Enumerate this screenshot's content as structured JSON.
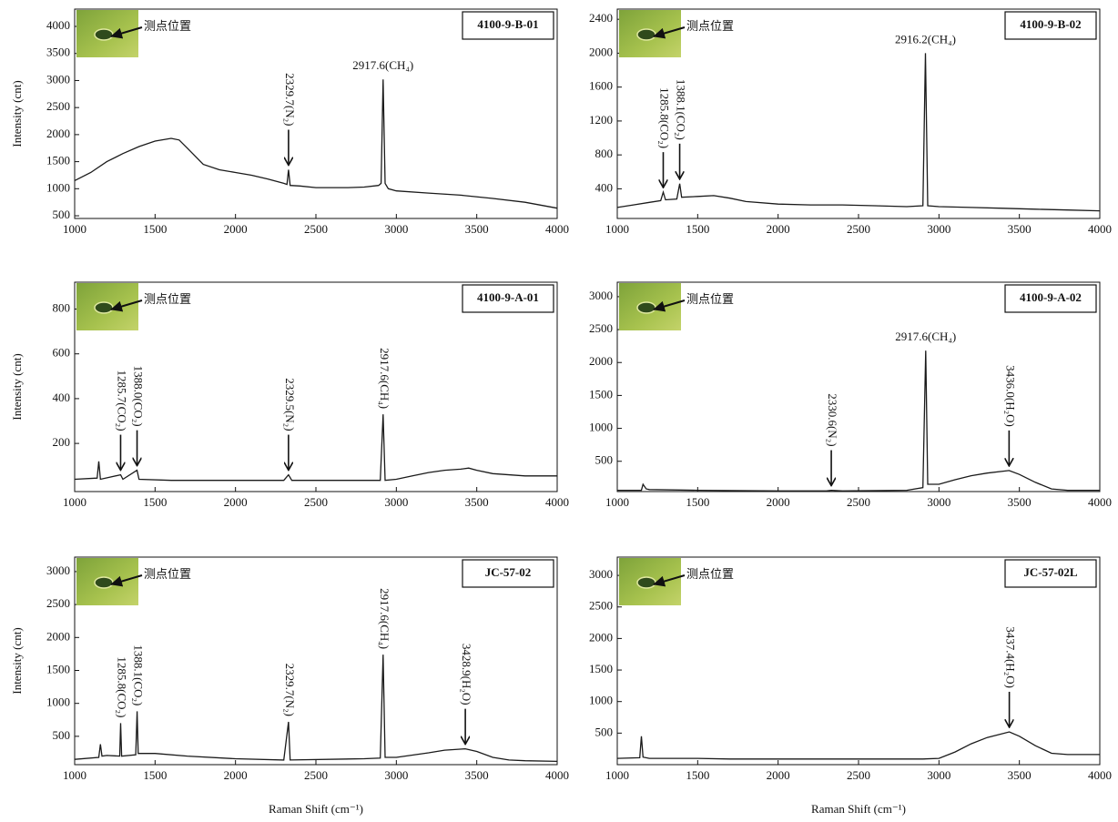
{
  "chart_data": [
    {
      "type": "line",
      "label": "4100-9-B-01",
      "inset_label": "测点位置",
      "ylabel": "Intensity (cnt)",
      "color": "#1a1a1a",
      "xlim": [
        1000,
        4000
      ],
      "ylim": [
        450,
        4320
      ],
      "xticks": [
        1000,
        1500,
        2000,
        2500,
        3000,
        3500,
        4000
      ],
      "yticks": [
        500,
        1000,
        1500,
        2000,
        2500,
        3000,
        3500,
        4000
      ],
      "annotations": [
        {
          "text": "2329.7(N₂)",
          "x": 2329.7,
          "orientation": "vertical",
          "arrow": true
        },
        {
          "text": "2917.6(CH₄)",
          "x": 2917.6,
          "orientation": "horizontal",
          "arrow": false
        }
      ],
      "x": [
        1000,
        1100,
        1200,
        1300,
        1400,
        1500,
        1600,
        1650,
        1700,
        1800,
        1900,
        2000,
        2100,
        2200,
        2300,
        2320,
        2329.7,
        2340,
        2400,
        2500,
        2600,
        2700,
        2800,
        2890,
        2905,
        2917.6,
        2930,
        2950,
        3000,
        3200,
        3400,
        3600,
        3800,
        4000
      ],
      "values": [
        1150,
        1300,
        1500,
        1650,
        1780,
        1880,
        1930,
        1900,
        1750,
        1450,
        1350,
        1300,
        1250,
        1180,
        1100,
        1080,
        1350,
        1060,
        1050,
        1020,
        1020,
        1020,
        1030,
        1060,
        1100,
        3020,
        1100,
        1000,
        960,
        920,
        880,
        820,
        750,
        640
      ]
    },
    {
      "type": "line",
      "label": "4100-9-B-02",
      "inset_label": "测点位置",
      "color": "#1a1a1a",
      "xlim": [
        1000,
        4000
      ],
      "ylim": [
        50,
        2520
      ],
      "xticks": [
        1000,
        1500,
        2000,
        2500,
        3000,
        3500,
        4000
      ],
      "yticks": [
        400,
        800,
        1200,
        1600,
        2000,
        2400
      ],
      "annotations": [
        {
          "text": "1285.8(CO₂)",
          "x": 1285.8,
          "orientation": "vertical",
          "arrow": true
        },
        {
          "text": "1388.1(CO₂)",
          "x": 1388.1,
          "orientation": "vertical",
          "arrow": true
        },
        {
          "text": "2916.2(CH₄)",
          "x": 2916.2,
          "orientation": "horizontal",
          "arrow": false
        }
      ],
      "x": [
        1000,
        1100,
        1200,
        1270,
        1285.8,
        1300,
        1370,
        1388.1,
        1400,
        1500,
        1600,
        1700,
        1800,
        2000,
        2200,
        2400,
        2600,
        2800,
        2900,
        2916.2,
        2930,
        3000,
        3200,
        3400,
        3600,
        3800,
        4000
      ],
      "values": [
        180,
        210,
        240,
        260,
        360,
        270,
        280,
        460,
        300,
        310,
        320,
        290,
        250,
        220,
        210,
        210,
        200,
        190,
        200,
        2000,
        200,
        190,
        180,
        170,
        160,
        150,
        140
      ]
    },
    {
      "type": "line",
      "label": "4100-9-A-01",
      "inset_label": "测点位置",
      "ylabel": "Intensity (cnt)",
      "color": "#1a1a1a",
      "xlim": [
        1000,
        4000
      ],
      "ylim": [
        -15,
        920
      ],
      "xticks": [
        1000,
        1500,
        2000,
        2500,
        3000,
        3500,
        4000
      ],
      "yticks": [
        200,
        400,
        600,
        800
      ],
      "annotations": [
        {
          "text": "1285.7(CO₂)",
          "x": 1285.7,
          "orientation": "vertical",
          "arrow": true
        },
        {
          "text": "1388.0(CO₂)",
          "x": 1388,
          "orientation": "vertical",
          "arrow": true
        },
        {
          "text": "2329.5(N₂)",
          "x": 2329.5,
          "orientation": "vertical",
          "arrow": true
        },
        {
          "text": "2917.6(CH₄)",
          "x": 2917.6,
          "orientation": "vertical",
          "arrow": false
        }
      ],
      "x": [
        1000,
        1140,
        1150,
        1160,
        1285.7,
        1300,
        1388,
        1400,
        1600,
        2000,
        2300,
        2329.5,
        2350,
        2800,
        2900,
        2917.6,
        2930,
        3000,
        3100,
        3200,
        3300,
        3400,
        3450,
        3500,
        3600,
        3800,
        4000
      ],
      "values": [
        40,
        45,
        120,
        40,
        60,
        40,
        80,
        40,
        35,
        35,
        35,
        60,
        35,
        35,
        35,
        330,
        35,
        40,
        55,
        70,
        80,
        85,
        90,
        80,
        65,
        55,
        55
      ]
    },
    {
      "type": "line",
      "label": "4100-9-A-02",
      "inset_label": "测点位置",
      "color": "#1a1a1a",
      "xlim": [
        1000,
        4000
      ],
      "ylim": [
        40,
        3220
      ],
      "xticks": [
        1000,
        1500,
        2000,
        2500,
        3000,
        3500,
        4000
      ],
      "yticks": [
        500,
        1000,
        1500,
        2000,
        2500,
        3000
      ],
      "annotations": [
        {
          "text": "2330.6(N₂)",
          "x": 2330.6,
          "orientation": "vertical",
          "arrow": true
        },
        {
          "text": "2917.6(CH₄)",
          "x": 2917.6,
          "orientation": "horizontal",
          "arrow": false
        },
        {
          "text": "3436.0(H₂O)",
          "x": 3436,
          "orientation": "vertical",
          "arrow": true
        }
      ],
      "x": [
        1000,
        1150,
        1160,
        1180,
        1200,
        1500,
        2000,
        2300,
        2330.6,
        2400,
        2800,
        2900,
        2917.6,
        2930,
        3000,
        3100,
        3200,
        3300,
        3400,
        3436,
        3500,
        3600,
        3700,
        3800,
        4000
      ],
      "values": [
        60,
        60,
        150,
        80,
        70,
        60,
        50,
        50,
        60,
        50,
        60,
        100,
        2180,
        150,
        150,
        220,
        280,
        320,
        350,
        360,
        300,
        180,
        80,
        60,
        60
      ]
    },
    {
      "type": "line",
      "label": "JC-57-02",
      "inset_label": "测点位置",
      "ylabel": "Intensity (cnt)",
      "xlabel": "Raman Shift (cm⁻¹)",
      "color": "#1a1a1a",
      "xlim": [
        1000,
        4000
      ],
      "ylim": [
        70,
        3220
      ],
      "xticks": [
        1000,
        1500,
        2000,
        2500,
        3000,
        3500,
        4000
      ],
      "yticks": [
        500,
        1000,
        1500,
        2000,
        2500,
        3000
      ],
      "annotations": [
        {
          "text": "1285.8(CO₂)",
          "x": 1285.8,
          "orientation": "vertical",
          "arrow": false
        },
        {
          "text": "1388.1(CO₂)",
          "x": 1388.1,
          "orientation": "vertical",
          "arrow": false
        },
        {
          "text": "2329.7(N₂)",
          "x": 2329.7,
          "orientation": "vertical",
          "arrow": false
        },
        {
          "text": "2917.6(CH₄)",
          "x": 2917.6,
          "orientation": "vertical",
          "arrow": false
        },
        {
          "text": "3428.9(H₂O)",
          "x": 3428.9,
          "orientation": "vertical",
          "arrow": true
        }
      ],
      "x": [
        1000,
        1150,
        1160,
        1170,
        1200,
        1280,
        1285.8,
        1292,
        1380,
        1388.1,
        1395,
        1500,
        1700,
        2000,
        2300,
        2329.7,
        2340,
        2800,
        2900,
        2917.6,
        2930,
        3000,
        3200,
        3300,
        3428.9,
        3500,
        3600,
        3700,
        3800,
        4000
      ],
      "values": [
        150,
        180,
        380,
        200,
        210,
        200,
        700,
        200,
        220,
        880,
        240,
        240,
        200,
        160,
        140,
        720,
        140,
        160,
        170,
        1740,
        180,
        180,
        250,
        290,
        310,
        270,
        180,
        140,
        130,
        120
      ]
    },
    {
      "type": "line",
      "label": "JC-57-02L",
      "inset_label": "测点位置",
      "xlabel": "Raman Shift (cm⁻¹)",
      "color": "#1a1a1a",
      "xlim": [
        1000,
        4000
      ],
      "ylim": [
        0,
        3290
      ],
      "xticks": [
        1000,
        1500,
        2000,
        2500,
        3000,
        3500,
        4000
      ],
      "yticks": [
        500,
        1000,
        1500,
        2000,
        2500,
        3000
      ],
      "annotations": [
        {
          "text": "3437.4(H₂O)",
          "x": 3437.4,
          "orientation": "vertical",
          "arrow": true
        }
      ],
      "x": [
        1000,
        1140,
        1150,
        1160,
        1200,
        1500,
        1700,
        2000,
        2500,
        2900,
        3000,
        3100,
        3200,
        3300,
        3437.4,
        3500,
        3600,
        3700,
        3800,
        4000
      ],
      "values": [
        100,
        110,
        450,
        120,
        100,
        100,
        90,
        90,
        90,
        90,
        100,
        200,
        330,
        430,
        520,
        450,
        300,
        180,
        160,
        160
      ]
    }
  ]
}
